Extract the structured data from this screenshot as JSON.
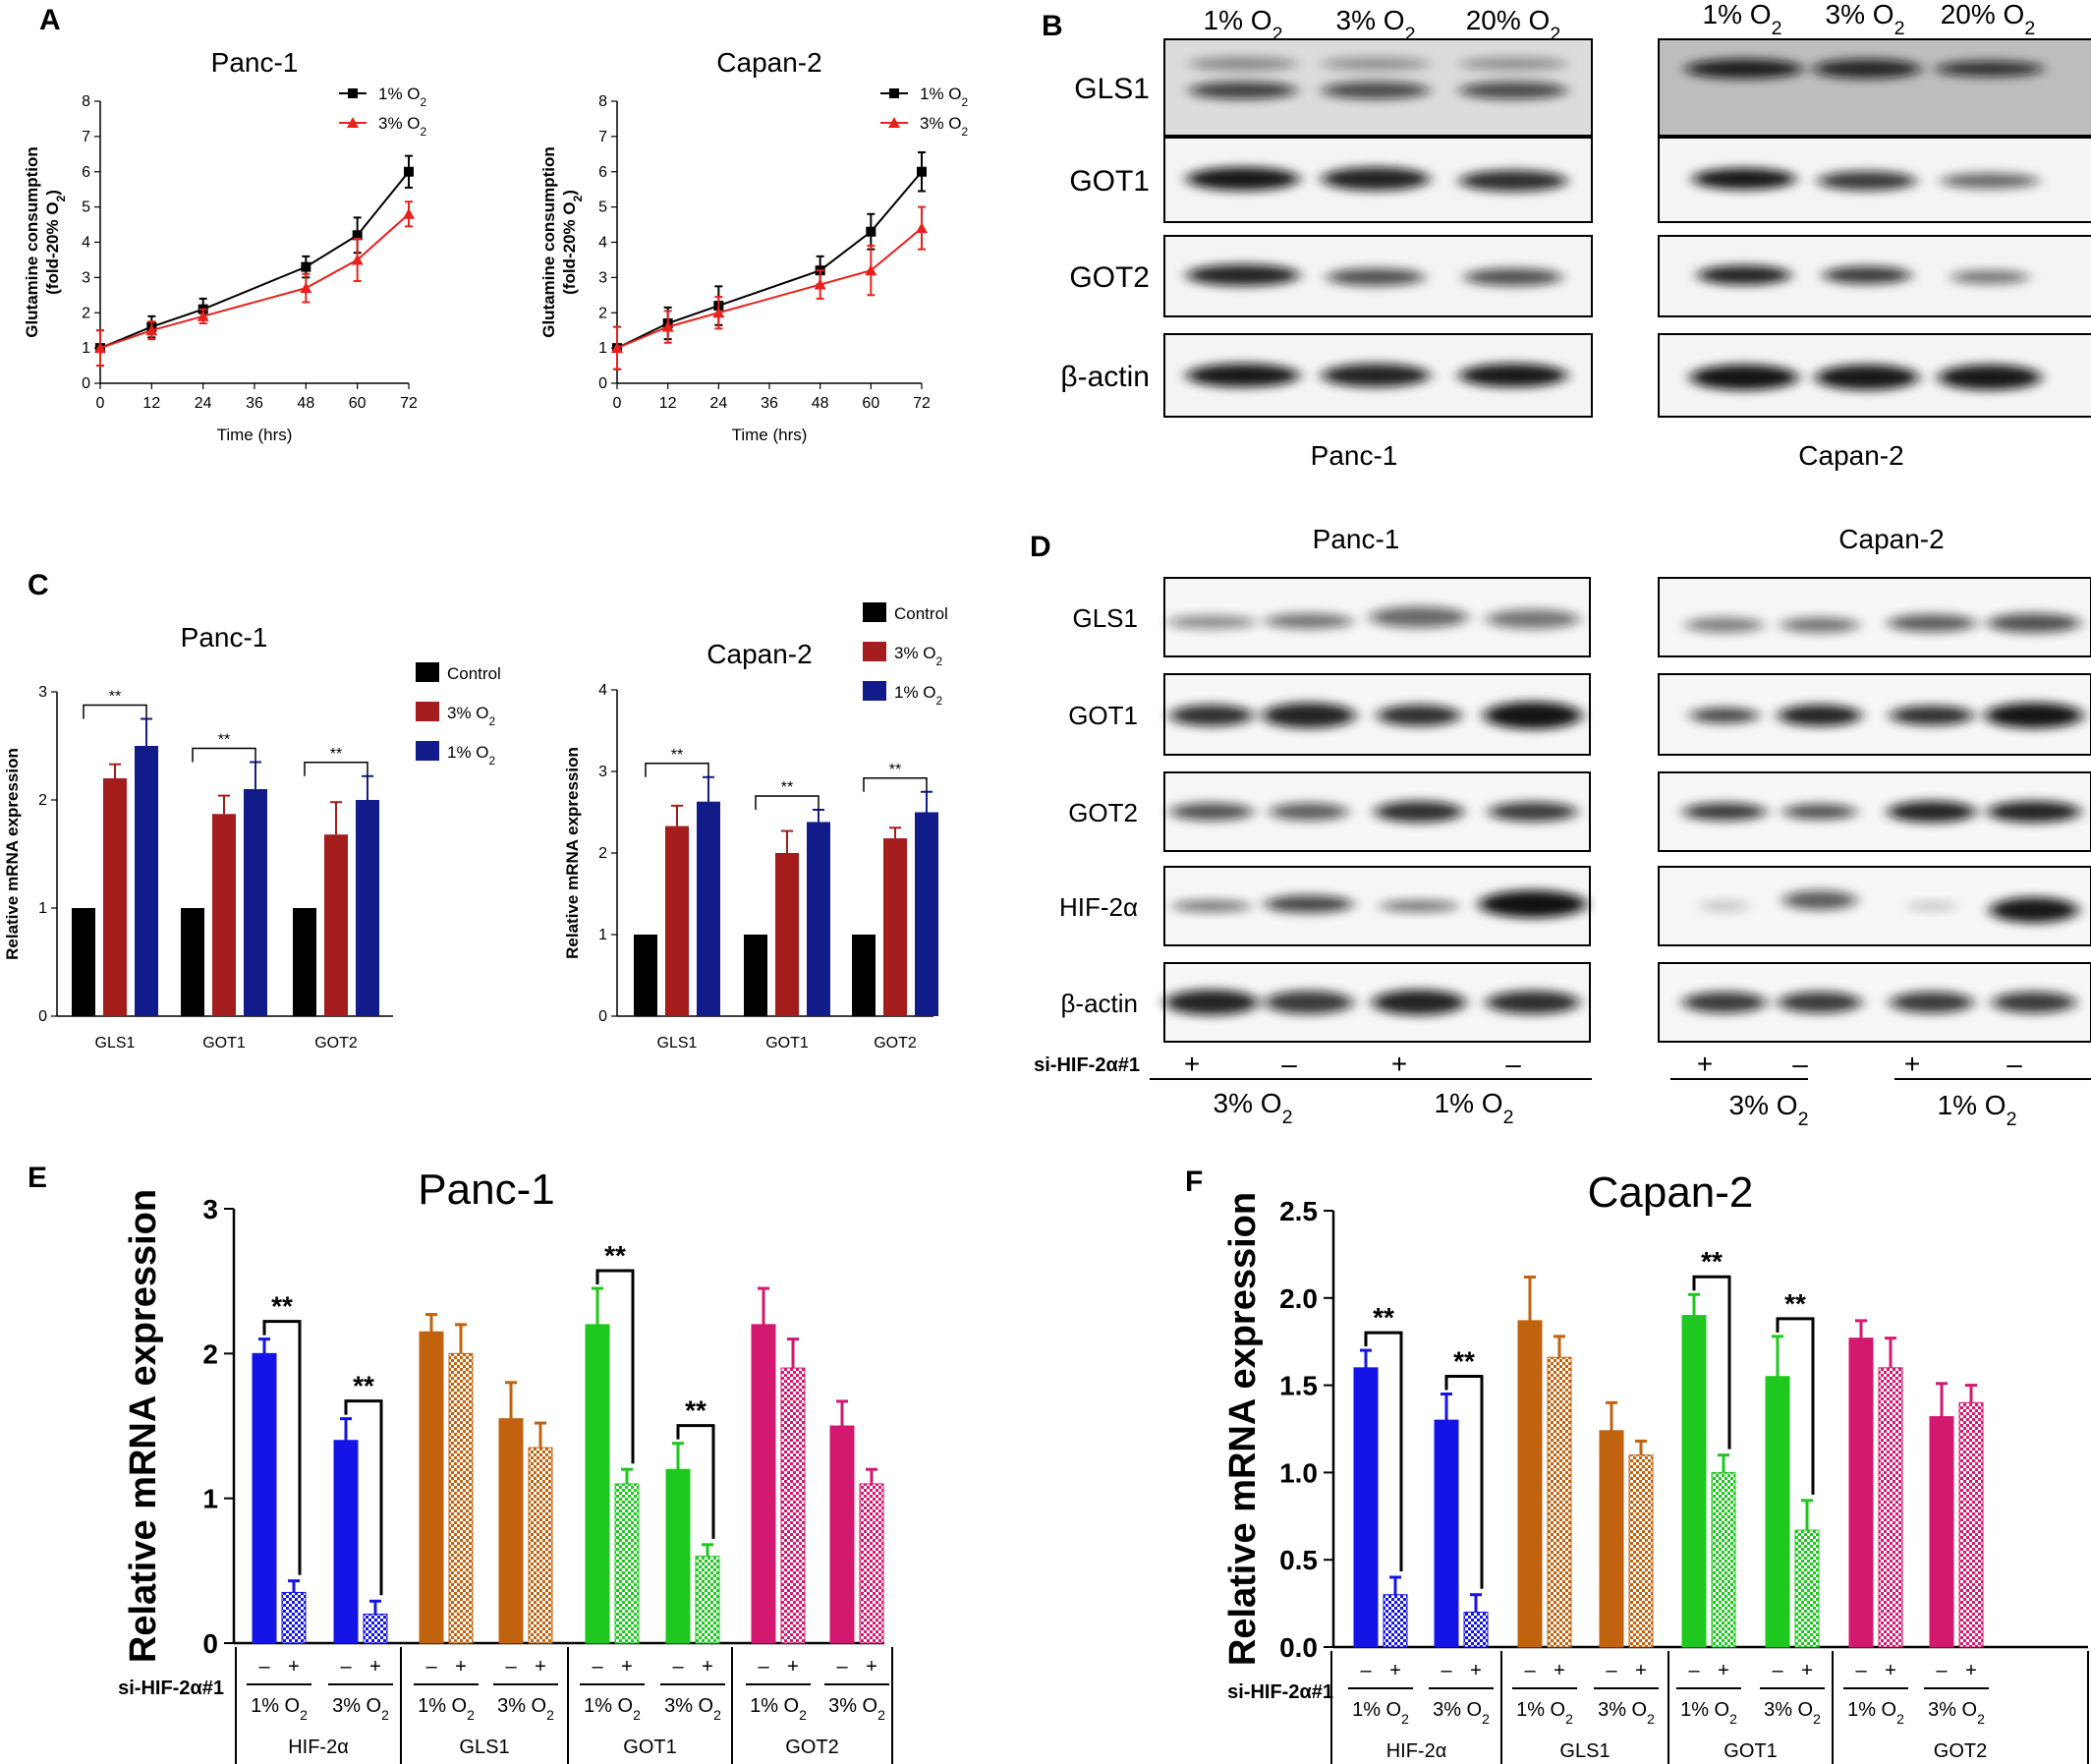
{
  "panels": {
    "a": "A",
    "b": "B",
    "c": "C",
    "d": "D",
    "e": "E",
    "f": "F"
  },
  "o2_sub": "2",
  "chart_data": [
    {
      "id": "A-panc1",
      "type": "line",
      "title": "Panc-1",
      "xlabel": "Time (hrs)",
      "ylabel_line1": "Glutamine consumption",
      "ylabel_line2": "(fold-20% O",
      "x": [
        0,
        12,
        24,
        36,
        48,
        60,
        72
      ],
      "xticks": [
        "0",
        "12",
        "24",
        "36",
        "48",
        "60",
        "72"
      ],
      "ylim": [
        0,
        8
      ],
      "yticks": [
        "0",
        "1",
        "2",
        "3",
        "4",
        "5",
        "6",
        "7",
        "8"
      ],
      "series": [
        {
          "name": "1% O",
          "color": "#000000",
          "x": [
            0,
            12,
            24,
            48,
            60,
            72
          ],
          "values": [
            1.0,
            1.6,
            2.1,
            3.3,
            4.2,
            6.0
          ],
          "err": [
            0.5,
            0.3,
            0.3,
            0.3,
            0.5,
            0.45
          ]
        },
        {
          "name": "3% O",
          "color": "#e8211c",
          "x": [
            0,
            12,
            24,
            48,
            60,
            72
          ],
          "values": [
            1.0,
            1.5,
            1.9,
            2.7,
            3.5,
            4.8
          ],
          "err": [
            0.5,
            0.25,
            0.2,
            0.4,
            0.6,
            0.35
          ]
        }
      ]
    },
    {
      "id": "A-capan2",
      "type": "line",
      "title": "Capan-2",
      "xlabel": "Time (hrs)",
      "ylabel_line1": "Glutamine consumption",
      "ylabel_line2": "(fold-20% O",
      "x": [
        0,
        12,
        24,
        36,
        48,
        60,
        72
      ],
      "xticks": [
        "0",
        "12",
        "24",
        "36",
        "48",
        "60",
        "72"
      ],
      "ylim": [
        0,
        8
      ],
      "yticks": [
        "0",
        "1",
        "2",
        "3",
        "4",
        "5",
        "6",
        "7",
        "8"
      ],
      "series": [
        {
          "name": "1% O",
          "color": "#000000",
          "x": [
            0,
            12,
            24,
            48,
            60,
            72
          ],
          "values": [
            1.0,
            1.7,
            2.2,
            3.2,
            4.3,
            6.0
          ],
          "err": [
            0.6,
            0.45,
            0.55,
            0.4,
            0.5,
            0.55
          ]
        },
        {
          "name": "3% O",
          "color": "#e8211c",
          "x": [
            0,
            12,
            24,
            48,
            60,
            72
          ],
          "values": [
            1.0,
            1.6,
            2.0,
            2.8,
            3.2,
            4.4
          ],
          "err": [
            0.6,
            0.45,
            0.45,
            0.4,
            0.7,
            0.6
          ]
        }
      ]
    },
    {
      "id": "C-panc1",
      "type": "bar",
      "title": "Panc-1",
      "ylabel": "Relative mRNA expression",
      "categories": [
        "GLS1",
        "GOT1",
        "GOT2"
      ],
      "ylim": [
        0,
        3
      ],
      "yticks": [
        "0",
        "1",
        "2",
        "3"
      ],
      "series": [
        {
          "name": "Control",
          "color": "#000000",
          "values": [
            1.0,
            1.0,
            1.0
          ],
          "err": [
            0,
            0,
            0
          ]
        },
        {
          "name": "3% O",
          "color": "#a51c1c",
          "values": [
            2.2,
            1.87,
            1.68
          ],
          "err": [
            0.13,
            0.17,
            0.3
          ]
        },
        {
          "name": "1% O",
          "color": "#121b8a",
          "values": [
            2.5,
            2.1,
            2.0
          ],
          "err": [
            0.25,
            0.25,
            0.22
          ]
        }
      ],
      "sig": [
        "**",
        "**",
        "**"
      ]
    },
    {
      "id": "C-capan2",
      "type": "bar",
      "title": "Capan-2",
      "ylabel": "Relative mRNA expression",
      "categories": [
        "GLS1",
        "GOT1",
        "GOT2"
      ],
      "ylim": [
        0,
        4
      ],
      "yticks": [
        "0",
        "1",
        "2",
        "3",
        "4"
      ],
      "series": [
        {
          "name": "Control",
          "color": "#000000",
          "values": [
            1.0,
            1.0,
            1.0
          ],
          "err": [
            0,
            0,
            0
          ]
        },
        {
          "name": "3% O",
          "color": "#a51c1c",
          "values": [
            2.33,
            2.0,
            2.18
          ],
          "err": [
            0.25,
            0.27,
            0.13
          ]
        },
        {
          "name": "1% O",
          "color": "#121b8a",
          "values": [
            2.63,
            2.38,
            2.5
          ],
          "err": [
            0.3,
            0.15,
            0.25
          ]
        }
      ],
      "sig": [
        "**",
        "**",
        "**"
      ]
    },
    {
      "id": "E-panc1",
      "type": "bar",
      "title": "Panc-1",
      "ylabel": "Relative mRNA expression",
      "ylim": [
        0,
        3
      ],
      "yticks": [
        "0",
        "1",
        "2",
        "3"
      ],
      "genes": [
        "HIF-2α",
        "GLS1",
        "GOT1",
        "GOT2"
      ],
      "gene_colors": [
        "#1414e6",
        "#c0620e",
        "#1ec81e",
        "#d2186f"
      ],
      "conditions": [
        "1% O",
        "3% O"
      ],
      "pairs": [
        {
          "gene": 0,
          "values": [
            2.0,
            0.35
          ],
          "err": [
            0.1,
            0.08
          ],
          "sig": "**"
        },
        {
          "gene": 0,
          "values": [
            1.4,
            0.2
          ],
          "err": [
            0.15,
            0.09
          ],
          "sig": "**"
        },
        {
          "gene": 1,
          "values": [
            2.15,
            2.0
          ],
          "err": [
            0.12,
            0.2
          ],
          "sig": ""
        },
        {
          "gene": 1,
          "values": [
            1.55,
            1.35
          ],
          "err": [
            0.25,
            0.17
          ],
          "sig": ""
        },
        {
          "gene": 2,
          "values": [
            2.2,
            1.1
          ],
          "err": [
            0.25,
            0.1
          ],
          "sig": "**"
        },
        {
          "gene": 2,
          "values": [
            1.2,
            0.6
          ],
          "err": [
            0.18,
            0.08
          ],
          "sig": "**"
        },
        {
          "gene": 3,
          "values": [
            2.2,
            1.9
          ],
          "err": [
            0.25,
            0.2
          ],
          "sig": ""
        },
        {
          "gene": 3,
          "values": [
            1.5,
            1.1
          ],
          "err": [
            0.17,
            0.1
          ],
          "sig": ""
        }
      ]
    },
    {
      "id": "F-capan2",
      "type": "bar",
      "title": "Capan-2",
      "ylabel": "Relative mRNA expression",
      "ylim": [
        0,
        2.5
      ],
      "yticks": [
        "0.0",
        "0.5",
        "1.0",
        "1.5",
        "2.0",
        "2.5"
      ],
      "genes": [
        "HIF-2α",
        "GLS1",
        "GOT1",
        "GOT2"
      ],
      "gene_colors": [
        "#1414e6",
        "#c0620e",
        "#1ec81e",
        "#d2186f"
      ],
      "conditions": [
        "1% O",
        "3% O"
      ],
      "pairs": [
        {
          "gene": 0,
          "values": [
            1.6,
            0.3
          ],
          "err": [
            0.1,
            0.1
          ],
          "sig": "**"
        },
        {
          "gene": 0,
          "values": [
            1.3,
            0.2
          ],
          "err": [
            0.15,
            0.1
          ],
          "sig": "**"
        },
        {
          "gene": 1,
          "values": [
            1.87,
            1.66
          ],
          "err": [
            0.25,
            0.12
          ],
          "sig": ""
        },
        {
          "gene": 1,
          "values": [
            1.24,
            1.1
          ],
          "err": [
            0.16,
            0.08
          ],
          "sig": ""
        },
        {
          "gene": 2,
          "values": [
            1.9,
            1.0
          ],
          "err": [
            0.12,
            0.1
          ],
          "sig": "**"
        },
        {
          "gene": 2,
          "values": [
            1.55,
            0.67
          ],
          "err": [
            0.23,
            0.17
          ],
          "sig": "**"
        },
        {
          "gene": 3,
          "values": [
            1.77,
            1.6
          ],
          "err": [
            0.1,
            0.17
          ],
          "sig": ""
        },
        {
          "gene": 3,
          "values": [
            1.32,
            1.4
          ],
          "err": [
            0.19,
            0.1
          ],
          "sig": ""
        }
      ]
    }
  ],
  "blot_b": {
    "lanes": [
      "1% O",
      "3% O",
      "20% O"
    ],
    "proteins": [
      "GLS1",
      "GOT1",
      "GOT2",
      "β-actin"
    ],
    "cells": [
      "Panc-1",
      "Capan-2"
    ]
  },
  "blot_d": {
    "titles": [
      "Panc-1",
      "Capan-2"
    ],
    "proteins": [
      "GLS1",
      "GOT1",
      "GOT2",
      "HIF-2α",
      "β-actin"
    ],
    "si_label": "si-HIF-2α#1",
    "signs": [
      "+",
      "–",
      "+",
      "–"
    ],
    "groups": [
      "3% O",
      "1% O"
    ]
  },
  "ef_si_label": "si-HIF-2α#1",
  "ef_signs": [
    "–",
    "+"
  ]
}
